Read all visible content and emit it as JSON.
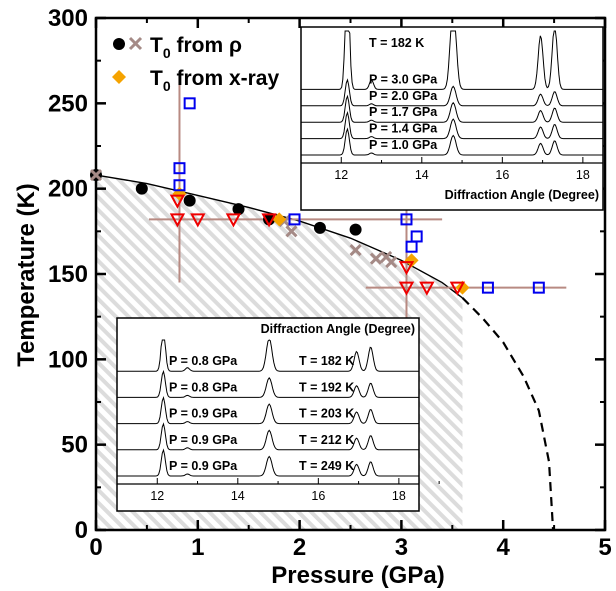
{
  "chart_data": {
    "type": "scatter",
    "xlabel": "Pressure (GPa)",
    "ylabel": "Temperature  (K)",
    "xlim": [
      0,
      5
    ],
    "ylim": [
      0,
      300
    ],
    "x_ticks": [
      "0",
      "1",
      "2",
      "3",
      "4",
      "5"
    ],
    "y_ticks": [
      "0",
      "50",
      "100",
      "150",
      "200",
      "250",
      "300"
    ],
    "grid": false,
    "legend_position": "top-left",
    "legend": {
      "row1_lead": "T",
      "row1_sub": "0",
      "row1_tail": " from ρ",
      "row2_lead": "T",
      "row2_sub": "0",
      "row2_tail": " from x-ray"
    },
    "series": [
      {
        "name": "T0 from ρ",
        "marker": "filled-circle",
        "color": "#000000",
        "points": [
          [
            0.0,
            208
          ],
          [
            0.45,
            200
          ],
          [
            0.92,
            193
          ],
          [
            1.4,
            188
          ],
          [
            1.7,
            182
          ],
          [
            2.2,
            177
          ],
          [
            2.55,
            176
          ]
        ]
      },
      {
        "name": "T0 from ρ",
        "marker": "x-cross",
        "color": "#a58a86",
        "points": [
          [
            0.0,
            208
          ],
          [
            1.85,
            181
          ],
          [
            1.92,
            175
          ],
          [
            2.55,
            164
          ],
          [
            2.75,
            159
          ],
          [
            2.85,
            160
          ],
          [
            2.9,
            157
          ]
        ]
      },
      {
        "name": "T0 from x-ray",
        "marker": "filled-diamond",
        "color": "#f5a300",
        "points": [
          [
            0.82,
            197
          ],
          [
            1.8,
            182
          ],
          [
            3.1,
            158
          ],
          [
            3.6,
            142
          ]
        ]
      },
      {
        "marker": "open-square",
        "color": "#0000ee",
        "points": [
          [
            0.82,
            212
          ],
          [
            0.82,
            202
          ],
          [
            0.92,
            250
          ],
          [
            1.95,
            182
          ],
          [
            3.05,
            182
          ],
          [
            3.1,
            166
          ],
          [
            3.15,
            172
          ],
          [
            3.85,
            142
          ],
          [
            4.35,
            142
          ]
        ]
      },
      {
        "marker": "open-triangle-down",
        "color": "#ee0000",
        "points": [
          [
            0.8,
            193
          ],
          [
            0.8,
            182
          ],
          [
            1.0,
            182
          ],
          [
            1.35,
            182
          ],
          [
            1.7,
            182
          ],
          [
            3.05,
            154
          ],
          [
            3.05,
            142
          ],
          [
            3.25,
            142
          ],
          [
            3.55,
            142
          ]
        ]
      }
    ],
    "guide_lines_color": "#b88a82",
    "guide_lines": [
      {
        "orientation": "vertical",
        "x": 0.82,
        "from": 145,
        "to": 268
      },
      {
        "orientation": "horizontal",
        "y": 182,
        "from": 0.52,
        "to": 3.4
      },
      {
        "orientation": "vertical",
        "x": 3.05,
        "from": 85,
        "to": 198
      },
      {
        "orientation": "horizontal",
        "y": 142,
        "from": 2.65,
        "to": 4.62
      }
    ],
    "boundary_curve": {
      "solid": [
        [
          0.0,
          208
        ],
        [
          0.5,
          203
        ],
        [
          1.0,
          196
        ],
        [
          1.5,
          189
        ],
        [
          2.0,
          181
        ],
        [
          2.5,
          171
        ],
        [
          3.0,
          158
        ],
        [
          3.4,
          145
        ],
        [
          3.6,
          136
        ]
      ],
      "dashed": [
        [
          3.6,
          136
        ],
        [
          3.8,
          124
        ],
        [
          4.0,
          110
        ],
        [
          4.2,
          90
        ],
        [
          4.35,
          70
        ],
        [
          4.45,
          40
        ],
        [
          4.49,
          0
        ]
      ]
    },
    "insets": [
      {
        "position": "top-right",
        "xlabel": "Diffraction Angle (Degree)",
        "xlim": [
          11,
          18.5
        ],
        "x_ticks": [
          "12",
          "14",
          "16",
          "18"
        ],
        "left_labels": [],
        "right_labels": [],
        "header_labels": [
          "T = 182 K"
        ],
        "traces": [
          "P = 3.0 GPa",
          "P = 2.0 GPa",
          "P = 1.7 GPa",
          "P = 1.4 GPa",
          "P = 1.0 GPa"
        ]
      },
      {
        "position": "bottom-left",
        "xlabel": "Diffraction Angle (Degree)",
        "xlim": [
          11,
          18.5
        ],
        "x_ticks": [
          "12",
          "14",
          "16",
          "18"
        ],
        "left_labels": [
          "P = 0.8 GPa",
          "P = 0.8 GPa",
          "P = 0.9 GPa",
          "P = 0.9 GPa",
          "P = 0.9 GPa"
        ],
        "right_labels": [
          "T = 182 K",
          "T = 192 K",
          "T = 203 K",
          "T = 212 K",
          "T = 249 K"
        ]
      }
    ]
  }
}
